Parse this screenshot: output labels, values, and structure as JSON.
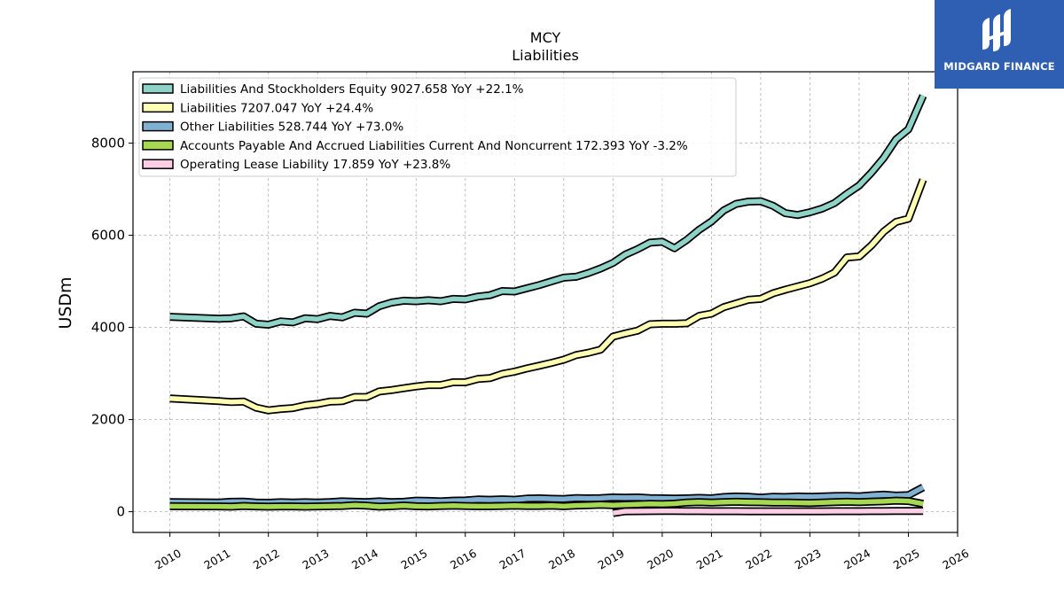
{
  "chart_data": {
    "type": "line",
    "title": "MCY",
    "subtitle": "Liabilities",
    "ylabel": "USDm",
    "xlabel": "",
    "xlim": [
      2009.25,
      2026.0
    ],
    "ylim": [
      -450,
      9550
    ],
    "yticks": [
      0,
      2000,
      4000,
      6000,
      8000
    ],
    "xticks": [
      "2010",
      "2011",
      "2012",
      "2013",
      "2014",
      "2015",
      "2016",
      "2017",
      "2018",
      "2019",
      "2020",
      "2021",
      "2022",
      "2023",
      "2024",
      "2025",
      "2026"
    ],
    "grid": true,
    "legend_position": "top-left",
    "series": [
      {
        "name": "Liabilities And Stockholders Equity",
        "legend_label": "Liabilities And Stockholders Equity  9027.658 YoY +22.1%",
        "color": "#8dd3c7",
        "x": [
          2010.0,
          2011.0,
          2011.25,
          2011.5,
          2011.75,
          2012.0,
          2012.25,
          2012.5,
          2012.75,
          2013.0,
          2013.25,
          2013.5,
          2013.75,
          2014.0,
          2014.25,
          2014.5,
          2014.75,
          2015.0,
          2015.25,
          2015.5,
          2015.75,
          2016.0,
          2016.25,
          2016.5,
          2016.75,
          2017.0,
          2017.25,
          2017.5,
          2017.75,
          2018.0,
          2018.25,
          2018.5,
          2018.75,
          2019.0,
          2019.25,
          2019.5,
          2019.75,
          2020.0,
          2020.25,
          2020.5,
          2020.75,
          2021.0,
          2021.25,
          2021.5,
          2021.75,
          2022.0,
          2022.25,
          2022.5,
          2022.75,
          2023.0,
          2023.25,
          2023.5,
          2023.75,
          2024.0,
          2024.25,
          2024.5,
          2024.75,
          2025.0,
          2025.3
        ],
        "y": [
          4230,
          4190,
          4200,
          4240,
          4080,
          4060,
          4130,
          4110,
          4200,
          4180,
          4250,
          4220,
          4320,
          4300,
          4460,
          4540,
          4580,
          4570,
          4590,
          4570,
          4620,
          4610,
          4670,
          4700,
          4790,
          4780,
          4850,
          4920,
          5000,
          5080,
          5100,
          5180,
          5280,
          5400,
          5580,
          5700,
          5840,
          5860,
          5720,
          5900,
          6120,
          6300,
          6540,
          6680,
          6730,
          6740,
          6640,
          6480,
          6440,
          6500,
          6580,
          6700,
          6900,
          7080,
          7360,
          7680,
          8080,
          8300,
          9028
        ]
      },
      {
        "name": "Liabilities",
        "legend_label": "Liabilities  7207.047 YoY +24.4%",
        "color": "#ffffb3",
        "x": [
          2010.0,
          2011.0,
          2011.25,
          2011.5,
          2011.75,
          2012.0,
          2012.25,
          2012.5,
          2012.75,
          2013.0,
          2013.25,
          2013.5,
          2013.75,
          2014.0,
          2014.25,
          2014.5,
          2014.75,
          2015.0,
          2015.25,
          2015.5,
          2015.75,
          2016.0,
          2016.25,
          2016.5,
          2016.75,
          2017.0,
          2017.25,
          2017.5,
          2017.75,
          2018.0,
          2018.25,
          2018.5,
          2018.75,
          2019.0,
          2019.25,
          2019.5,
          2019.75,
          2020.0,
          2020.25,
          2020.5,
          2020.75,
          2021.0,
          2021.25,
          2021.5,
          2021.75,
          2022.0,
          2022.25,
          2022.5,
          2022.75,
          2023.0,
          2023.25,
          2023.5,
          2023.75,
          2024.0,
          2024.25,
          2024.5,
          2024.75,
          2025.0,
          2025.3
        ],
        "y": [
          2460,
          2400,
          2380,
          2390,
          2260,
          2200,
          2230,
          2250,
          2310,
          2340,
          2390,
          2400,
          2490,
          2490,
          2610,
          2640,
          2680,
          2720,
          2750,
          2750,
          2810,
          2810,
          2880,
          2900,
          2990,
          3040,
          3110,
          3170,
          3230,
          3300,
          3400,
          3450,
          3520,
          3800,
          3870,
          3930,
          4070,
          4080,
          4080,
          4090,
          4250,
          4300,
          4440,
          4520,
          4600,
          4620,
          4740,
          4820,
          4890,
          4960,
          5060,
          5190,
          5520,
          5540,
          5780,
          6080,
          6290,
          6360,
          7207
        ]
      },
      {
        "name": "Other Liabilities",
        "legend_label": "Other Liabilities  528.744 YoY +73.0%",
        "color": "#80b1d3",
        "x": [
          2010.0,
          2011.0,
          2011.25,
          2011.5,
          2011.75,
          2012.0,
          2012.25,
          2012.5,
          2012.75,
          2013.0,
          2013.25,
          2013.5,
          2013.75,
          2014.0,
          2014.25,
          2014.5,
          2014.75,
          2015.0,
          2015.25,
          2015.5,
          2015.75,
          2016.0,
          2016.25,
          2016.5,
          2016.75,
          2017.0,
          2017.25,
          2017.5,
          2017.75,
          2018.0,
          2018.25,
          2018.5,
          2018.75,
          2019.0,
          2019.25,
          2019.5,
          2019.75,
          2020.0,
          2020.25,
          2020.5,
          2020.75,
          2021.0,
          2021.25,
          2021.5,
          2021.75,
          2022.0,
          2022.25,
          2022.5,
          2022.75,
          2023.0,
          2023.25,
          2023.5,
          2023.75,
          2024.0,
          2024.25,
          2024.5,
          2024.75,
          2025.0,
          2025.3
        ],
        "y": [
          210,
          200,
          215,
          220,
          200,
          195,
          205,
          200,
          205,
          200,
          210,
          225,
          215,
          210,
          225,
          210,
          215,
          240,
          235,
          225,
          240,
          245,
          265,
          260,
          270,
          260,
          285,
          290,
          280,
          275,
          295,
          290,
          295,
          310,
          305,
          310,
          295,
          290,
          285,
          290,
          300,
          290,
          320,
          330,
          325,
          305,
          325,
          320,
          330,
          325,
          330,
          340,
          345,
          335,
          355,
          370,
          350,
          360,
          529
        ]
      },
      {
        "name": "Accounts Payable And Accrued Liabilities Current And Noncurrent",
        "legend_label": "Accounts Payable And Accrued Liabilities Current And Noncurrent  172.393 YoY -3.2%",
        "color": "#a6d854",
        "x": [
          2010.0,
          2011.0,
          2011.25,
          2011.5,
          2011.75,
          2012.0,
          2012.25,
          2012.5,
          2012.75,
          2013.0,
          2013.25,
          2013.5,
          2013.75,
          2014.0,
          2014.25,
          2014.5,
          2014.75,
          2015.0,
          2015.25,
          2015.5,
          2015.75,
          2016.0,
          2016.25,
          2016.5,
          2016.75,
          2017.0,
          2017.25,
          2017.5,
          2017.75,
          2018.0,
          2018.25,
          2018.5,
          2018.75,
          2019.0,
          2019.25,
          2019.5,
          2019.75,
          2020.0,
          2020.25,
          2020.5,
          2020.75,
          2021.0,
          2021.25,
          2021.5,
          2021.75,
          2022.0,
          2022.25,
          2022.5,
          2022.75,
          2023.0,
          2023.25,
          2023.5,
          2023.75,
          2024.0,
          2024.25,
          2024.5,
          2024.75,
          2025.0,
          2025.3
        ],
        "y": [
          120,
          115,
          110,
          125,
          115,
          110,
          115,
          115,
          110,
          115,
          120,
          125,
          140,
          130,
          110,
          120,
          135,
          120,
          115,
          125,
          130,
          125,
          120,
          120,
          125,
          130,
          125,
          125,
          130,
          120,
          135,
          140,
          150,
          140,
          150,
          160,
          170,
          165,
          175,
          200,
          210,
          200,
          210,
          215,
          210,
          205,
          200,
          200,
          195,
          190,
          200,
          210,
          215,
          210,
          220,
          225,
          240,
          230,
          172
        ]
      },
      {
        "name": "Operating Lease Liability",
        "legend_label": "Operating Lease Liability  17.859 YoY +23.8%",
        "color": "#fccde5",
        "x": [
          2019.0,
          2019.25,
          2019.5,
          2019.75,
          2020.0,
          2020.25,
          2020.5,
          2020.75,
          2021.0,
          2021.25,
          2021.5,
          2021.75,
          2022.0,
          2022.25,
          2022.5,
          2022.75,
          2023.0,
          2023.25,
          2023.5,
          2023.75,
          2024.0,
          2024.25,
          2024.5,
          2024.75,
          2025.0,
          2025.3
        ],
        "y": [
          -30,
          10,
          12,
          14,
          15,
          15,
          14,
          13,
          12,
          12,
          11,
          10,
          10,
          10,
          10,
          9,
          9,
          10,
          11,
          12,
          12,
          13,
          14,
          15,
          16,
          18
        ]
      }
    ]
  },
  "logo": {
    "text": "MIDGARD FINANCE",
    "background": "#2f5fb3"
  }
}
